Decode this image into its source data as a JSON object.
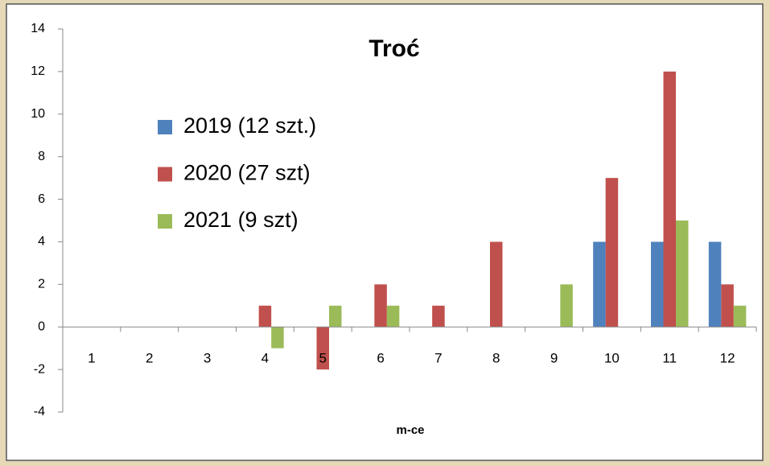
{
  "chart_data": {
    "type": "bar",
    "title": "Troć",
    "x_label": "m-ce",
    "categories": [
      "1",
      "2",
      "3",
      "4",
      "5",
      "6",
      "7",
      "8",
      "9",
      "10",
      "11",
      "12"
    ],
    "series": [
      {
        "name": "2019 (12 szt.)",
        "color": "#4f81bd",
        "values": [
          0,
          0,
          0,
          0,
          0,
          0,
          0,
          0,
          0,
          4,
          4,
          4
        ]
      },
      {
        "name": "2020 (27 szt)",
        "color": "#c0504d",
        "values": [
          0,
          0,
          0,
          1,
          -2,
          2,
          1,
          4,
          0,
          7,
          12,
          2
        ]
      },
      {
        "name": "2021 (9 szt)",
        "color": "#9bbb59",
        "values": [
          0,
          0,
          0,
          -1,
          1,
          1,
          0,
          0,
          2,
          0,
          5,
          1
        ]
      }
    ],
    "ylim": [
      -4,
      14
    ],
    "yticks": [
      -4,
      -2,
      0,
      2,
      4,
      6,
      8,
      10,
      12,
      14
    ],
    "grid": false,
    "legend": "upper left"
  }
}
